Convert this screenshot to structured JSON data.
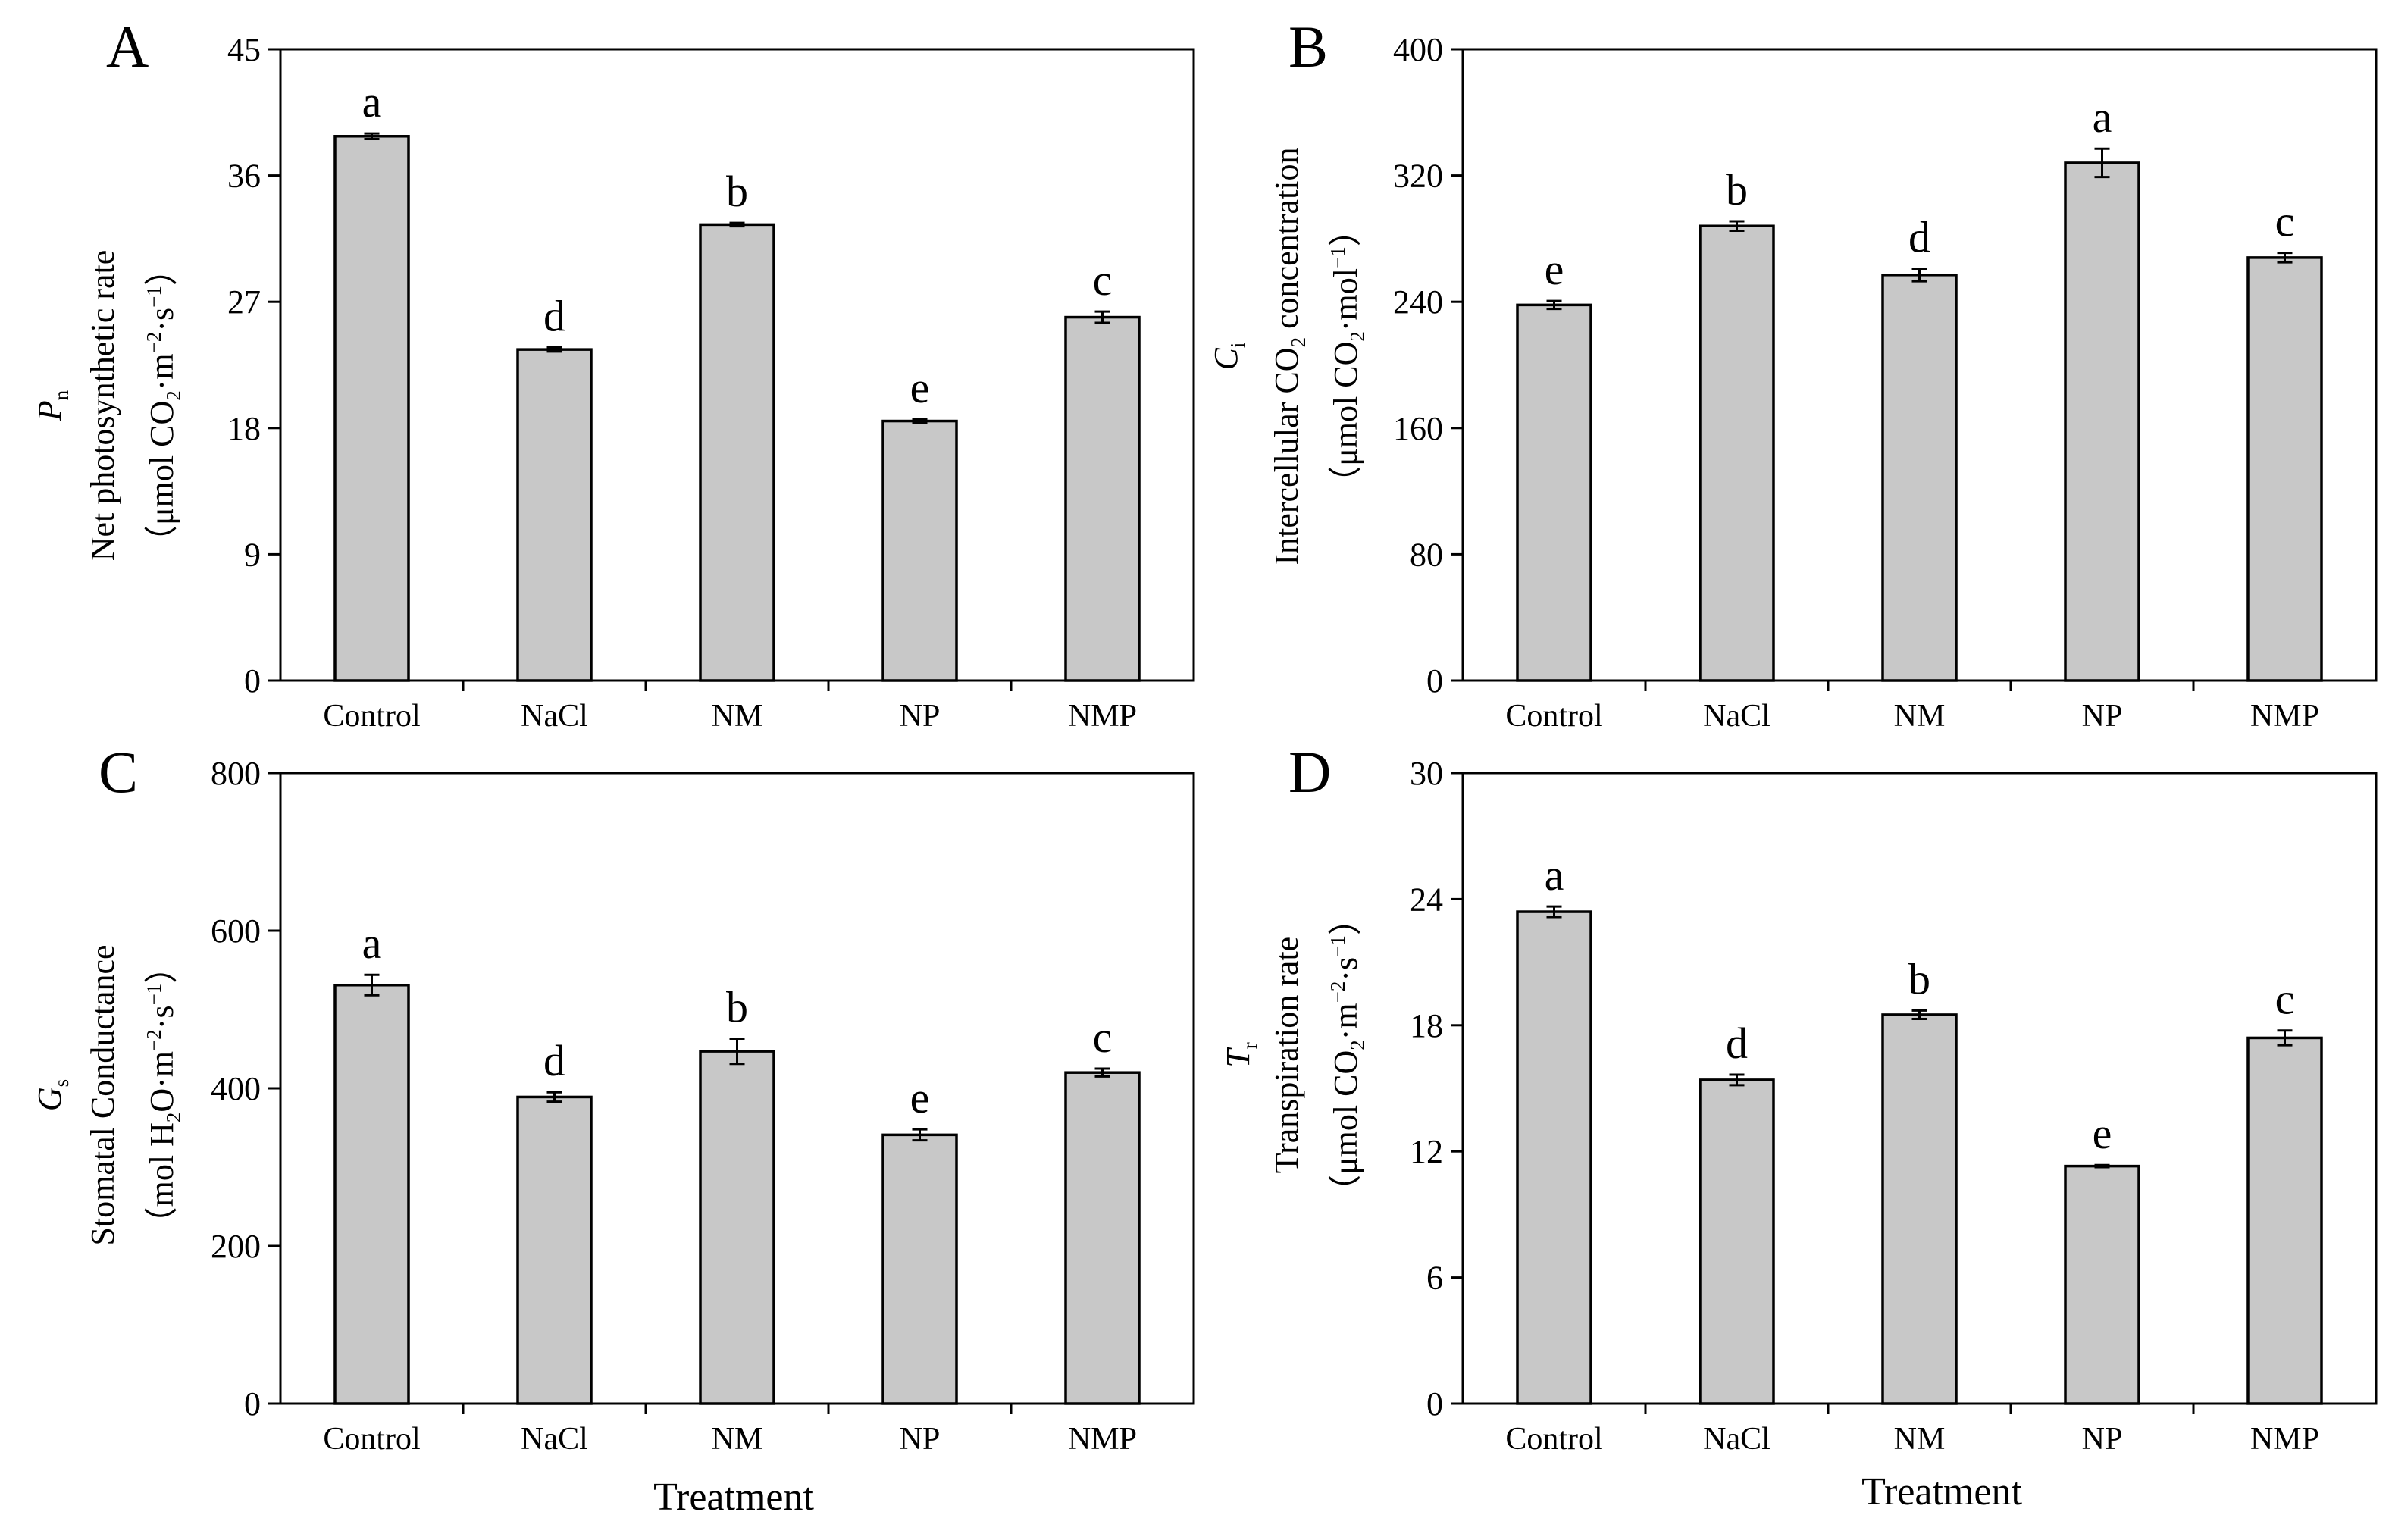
{
  "x_axis_title": "Treatment",
  "chart_data": [
    {
      "panel_label": "A",
      "type": "bar",
      "categories": [
        "Control",
        "NaCl",
        "NM",
        "NP",
        "NMP"
      ],
      "values": [
        38.8,
        23.6,
        32.5,
        18.5,
        25.9
      ],
      "errors": [
        0.2,
        0.15,
        0.12,
        0.15,
        0.4
      ],
      "significance": [
        "a",
        "d",
        "b",
        "e",
        "c"
      ],
      "ylim": [
        0,
        45
      ],
      "yticks": [
        0,
        9,
        18,
        27,
        36,
        45
      ],
      "ylabel_symbol": "P",
      "ylabel_subscript": "n",
      "ylabel_name": "Net photosynthetic rate",
      "ylabel_units": [
        "（μmol CO",
        "2",
        "·m",
        "−2",
        "·s",
        "−1",
        "）"
      ],
      "colors": {
        "bar": "#c8c8c8",
        "stroke": "#000000"
      }
    },
    {
      "panel_label": "B",
      "type": "bar",
      "categories": [
        "Control",
        "NaCl",
        "NM",
        "NP",
        "NMP"
      ],
      "values": [
        238,
        288,
        257,
        328,
        268
      ],
      "errors": [
        2.5,
        3,
        4,
        9,
        3
      ],
      "significance": [
        "e",
        "b",
        "d",
        "a",
        "c"
      ],
      "ylim": [
        0,
        400
      ],
      "yticks": [
        0,
        80,
        160,
        240,
        320,
        400
      ],
      "ylabel_symbol": "C",
      "ylabel_subscript": "i",
      "ylabel_name_parts": [
        "Intercellular CO",
        "2",
        " concentration"
      ],
      "ylabel_units": [
        "（μmol CO",
        "2",
        "·mol",
        "−1",
        "）"
      ],
      "colors": {
        "bar": "#c8c8c8",
        "stroke": "#000000"
      }
    },
    {
      "panel_label": "C",
      "type": "bar",
      "categories": [
        "Control",
        "NaCl",
        "NM",
        "NP",
        "NMP"
      ],
      "values": [
        531,
        389,
        447,
        341,
        420
      ],
      "errors": [
        13,
        6,
        16,
        7,
        5
      ],
      "significance": [
        "a",
        "d",
        "b",
        "e",
        "c"
      ],
      "ylim": [
        0,
        800
      ],
      "yticks": [
        0,
        200,
        400,
        600,
        800
      ],
      "ylabel_symbol": "G",
      "ylabel_subscript": "s",
      "ylabel_name": "Stomatal Conductance",
      "ylabel_units": [
        "（mol H",
        "2",
        "O·m",
        "−2",
        "·s",
        "−1",
        "）"
      ],
      "colors": {
        "bar": "#c8c8c8",
        "stroke": "#000000"
      }
    },
    {
      "panel_label": "D",
      "type": "bar",
      "categories": [
        "Control",
        "NaCl",
        "NM",
        "NP",
        "NMP"
      ],
      "values": [
        23.4,
        15.4,
        18.5,
        11.3,
        17.4
      ],
      "errors": [
        0.25,
        0.25,
        0.2,
        0.05,
        0.35
      ],
      "significance": [
        "a",
        "d",
        "b",
        "e",
        "c"
      ],
      "ylim": [
        0,
        30
      ],
      "yticks": [
        0,
        6,
        12,
        18,
        24,
        30
      ],
      "ylabel_symbol": "T",
      "ylabel_subscript": "r",
      "ylabel_name": "Transpiration rate",
      "ylabel_units": [
        "（μmol CO",
        "2",
        "·m",
        "−2",
        "·s",
        "−1",
        "）"
      ],
      "colors": {
        "bar": "#c8c8c8",
        "stroke": "#000000"
      }
    }
  ]
}
